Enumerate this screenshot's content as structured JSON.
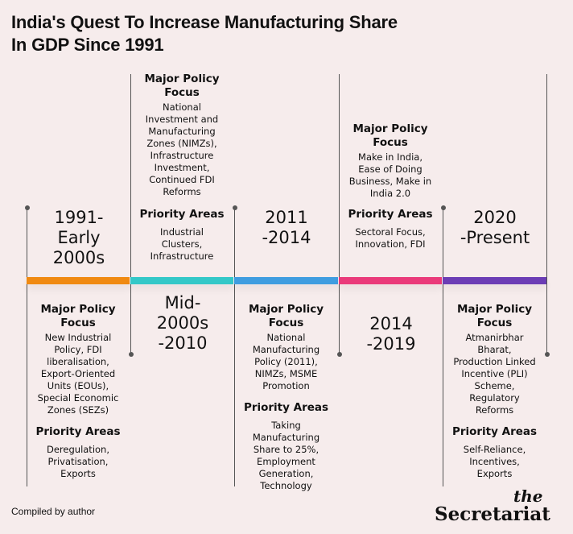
{
  "title": [
    "India's Quest To Increase Manufacturing Share",
    "In GDP Since 1991"
  ],
  "footer": "Compiled by author",
  "brand": {
    "the": "the",
    "name": "Secretariat"
  },
  "colors": {
    "seg1": "#f08a12",
    "seg2": "#33c8c8",
    "seg3": "#3f9de0",
    "seg4": "#ea3a7a",
    "seg5": "#6b3db5"
  },
  "periods": {
    "p1": [
      "1991-",
      "Early",
      "2000s"
    ],
    "p2": [
      "Mid-",
      "2000s",
      "-2010"
    ],
    "p3": [
      "2011",
      "-2014"
    ],
    "p4": [
      "2014",
      "-2019"
    ],
    "p5": [
      "2020",
      "-Present"
    ]
  },
  "labels": {
    "major": [
      "Major Policy",
      "Focus"
    ],
    "priority": "Priority Areas"
  },
  "p1": {
    "major": [
      "New Industrial",
      "Policy, FDI",
      "liberalisation,",
      "Export-Oriented",
      "Units (EOUs),",
      "Special Economic",
      "Zones (SEZs)"
    ],
    "priority": [
      "Deregulation,",
      "Privatisation,",
      "Exports"
    ]
  },
  "p2": {
    "major": [
      "National",
      "Investment and",
      "Manufacturing",
      "Zones (NIMZs),",
      "Infrastructure",
      "Investment,",
      "Continued FDI",
      "Reforms"
    ],
    "priority": [
      "Industrial",
      "Clusters,",
      "Infrastructure"
    ]
  },
  "p3": {
    "major": [
      "National",
      "Manufacturing",
      "Policy (2011),",
      "NIMZs, MSME",
      "Promotion"
    ],
    "priority": [
      "Taking",
      "Manufacturing",
      "Share to 25%,",
      "Employment",
      "Generation,",
      "Technology"
    ]
  },
  "p4": {
    "major": [
      "Make in India,",
      "Ease of Doing",
      "Business, Make in",
      "India 2.0"
    ],
    "priority": [
      "Sectoral Focus,",
      "Innovation, FDI"
    ]
  },
  "p5": {
    "major": [
      "Atmanirbhar",
      "Bharat,",
      "Production Linked",
      "Incentive (PLI)",
      "Scheme,",
      "Regulatory",
      "Reforms"
    ],
    "priority": [
      "Self-Reliance,",
      "Incentives,",
      "Exports"
    ]
  }
}
